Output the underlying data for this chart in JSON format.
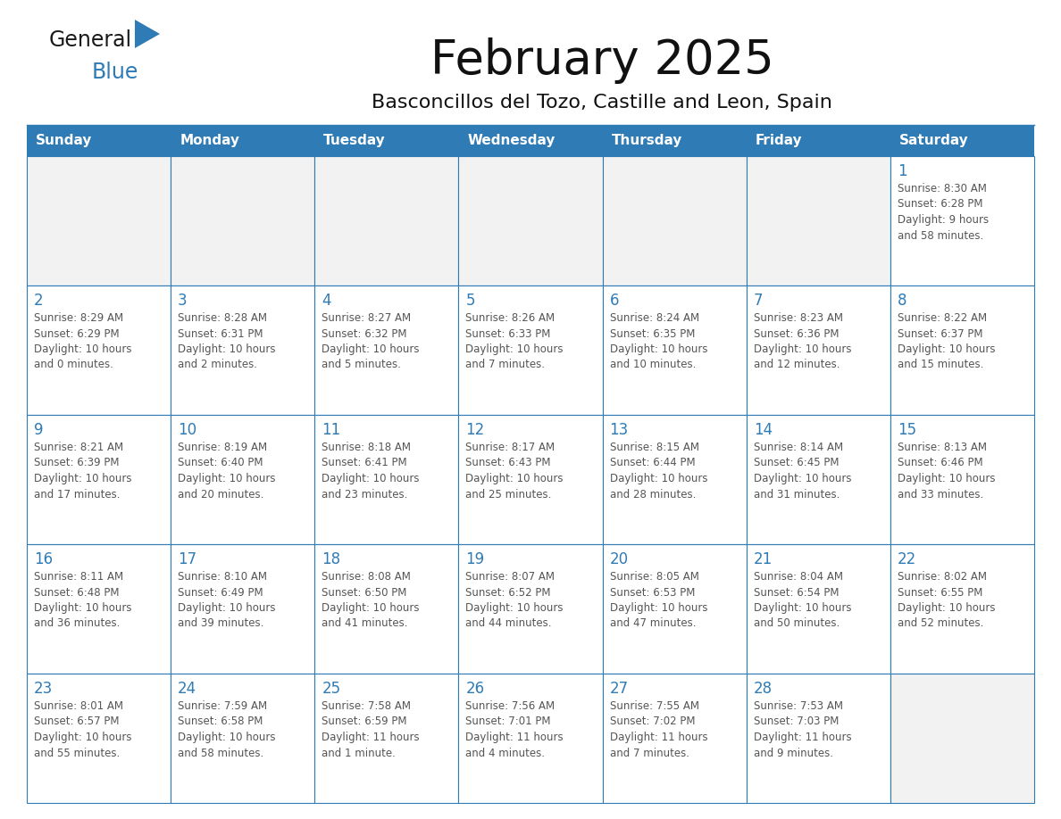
{
  "title": "February 2025",
  "subtitle": "Basconcillos del Tozo, Castille and Leon, Spain",
  "header_bg": "#2E7BB5",
  "header_text_color": "#FFFFFF",
  "cell_bg": "#FFFFFF",
  "cell_bg_empty_week1": "#F2F2F2",
  "cell_border_color": "#2E7BB5",
  "day_number_color": "#2E7BB5",
  "cell_text_color": "#555555",
  "days_of_week": [
    "Sunday",
    "Monday",
    "Tuesday",
    "Wednesday",
    "Thursday",
    "Friday",
    "Saturday"
  ],
  "weeks": [
    [
      {
        "day": "",
        "info": ""
      },
      {
        "day": "",
        "info": ""
      },
      {
        "day": "",
        "info": ""
      },
      {
        "day": "",
        "info": ""
      },
      {
        "day": "",
        "info": ""
      },
      {
        "day": "",
        "info": ""
      },
      {
        "day": "1",
        "info": "Sunrise: 8:30 AM\nSunset: 6:28 PM\nDaylight: 9 hours\nand 58 minutes."
      }
    ],
    [
      {
        "day": "2",
        "info": "Sunrise: 8:29 AM\nSunset: 6:29 PM\nDaylight: 10 hours\nand 0 minutes."
      },
      {
        "day": "3",
        "info": "Sunrise: 8:28 AM\nSunset: 6:31 PM\nDaylight: 10 hours\nand 2 minutes."
      },
      {
        "day": "4",
        "info": "Sunrise: 8:27 AM\nSunset: 6:32 PM\nDaylight: 10 hours\nand 5 minutes."
      },
      {
        "day": "5",
        "info": "Sunrise: 8:26 AM\nSunset: 6:33 PM\nDaylight: 10 hours\nand 7 minutes."
      },
      {
        "day": "6",
        "info": "Sunrise: 8:24 AM\nSunset: 6:35 PM\nDaylight: 10 hours\nand 10 minutes."
      },
      {
        "day": "7",
        "info": "Sunrise: 8:23 AM\nSunset: 6:36 PM\nDaylight: 10 hours\nand 12 minutes."
      },
      {
        "day": "8",
        "info": "Sunrise: 8:22 AM\nSunset: 6:37 PM\nDaylight: 10 hours\nand 15 minutes."
      }
    ],
    [
      {
        "day": "9",
        "info": "Sunrise: 8:21 AM\nSunset: 6:39 PM\nDaylight: 10 hours\nand 17 minutes."
      },
      {
        "day": "10",
        "info": "Sunrise: 8:19 AM\nSunset: 6:40 PM\nDaylight: 10 hours\nand 20 minutes."
      },
      {
        "day": "11",
        "info": "Sunrise: 8:18 AM\nSunset: 6:41 PM\nDaylight: 10 hours\nand 23 minutes."
      },
      {
        "day": "12",
        "info": "Sunrise: 8:17 AM\nSunset: 6:43 PM\nDaylight: 10 hours\nand 25 minutes."
      },
      {
        "day": "13",
        "info": "Sunrise: 8:15 AM\nSunset: 6:44 PM\nDaylight: 10 hours\nand 28 minutes."
      },
      {
        "day": "14",
        "info": "Sunrise: 8:14 AM\nSunset: 6:45 PM\nDaylight: 10 hours\nand 31 minutes."
      },
      {
        "day": "15",
        "info": "Sunrise: 8:13 AM\nSunset: 6:46 PM\nDaylight: 10 hours\nand 33 minutes."
      }
    ],
    [
      {
        "day": "16",
        "info": "Sunrise: 8:11 AM\nSunset: 6:48 PM\nDaylight: 10 hours\nand 36 minutes."
      },
      {
        "day": "17",
        "info": "Sunrise: 8:10 AM\nSunset: 6:49 PM\nDaylight: 10 hours\nand 39 minutes."
      },
      {
        "day": "18",
        "info": "Sunrise: 8:08 AM\nSunset: 6:50 PM\nDaylight: 10 hours\nand 41 minutes."
      },
      {
        "day": "19",
        "info": "Sunrise: 8:07 AM\nSunset: 6:52 PM\nDaylight: 10 hours\nand 44 minutes."
      },
      {
        "day": "20",
        "info": "Sunrise: 8:05 AM\nSunset: 6:53 PM\nDaylight: 10 hours\nand 47 minutes."
      },
      {
        "day": "21",
        "info": "Sunrise: 8:04 AM\nSunset: 6:54 PM\nDaylight: 10 hours\nand 50 minutes."
      },
      {
        "day": "22",
        "info": "Sunrise: 8:02 AM\nSunset: 6:55 PM\nDaylight: 10 hours\nand 52 minutes."
      }
    ],
    [
      {
        "day": "23",
        "info": "Sunrise: 8:01 AM\nSunset: 6:57 PM\nDaylight: 10 hours\nand 55 minutes."
      },
      {
        "day": "24",
        "info": "Sunrise: 7:59 AM\nSunset: 6:58 PM\nDaylight: 10 hours\nand 58 minutes."
      },
      {
        "day": "25",
        "info": "Sunrise: 7:58 AM\nSunset: 6:59 PM\nDaylight: 11 hours\nand 1 minute."
      },
      {
        "day": "26",
        "info": "Sunrise: 7:56 AM\nSunset: 7:01 PM\nDaylight: 11 hours\nand 4 minutes."
      },
      {
        "day": "27",
        "info": "Sunrise: 7:55 AM\nSunset: 7:02 PM\nDaylight: 11 hours\nand 7 minutes."
      },
      {
        "day": "28",
        "info": "Sunrise: 7:53 AM\nSunset: 7:03 PM\nDaylight: 11 hours\nand 9 minutes."
      },
      {
        "day": "",
        "info": ""
      }
    ]
  ],
  "logo_general_color": "#1a1a1a",
  "logo_blue_color": "#2E7BB5",
  "logo_triangle_color": "#2E7BB5"
}
